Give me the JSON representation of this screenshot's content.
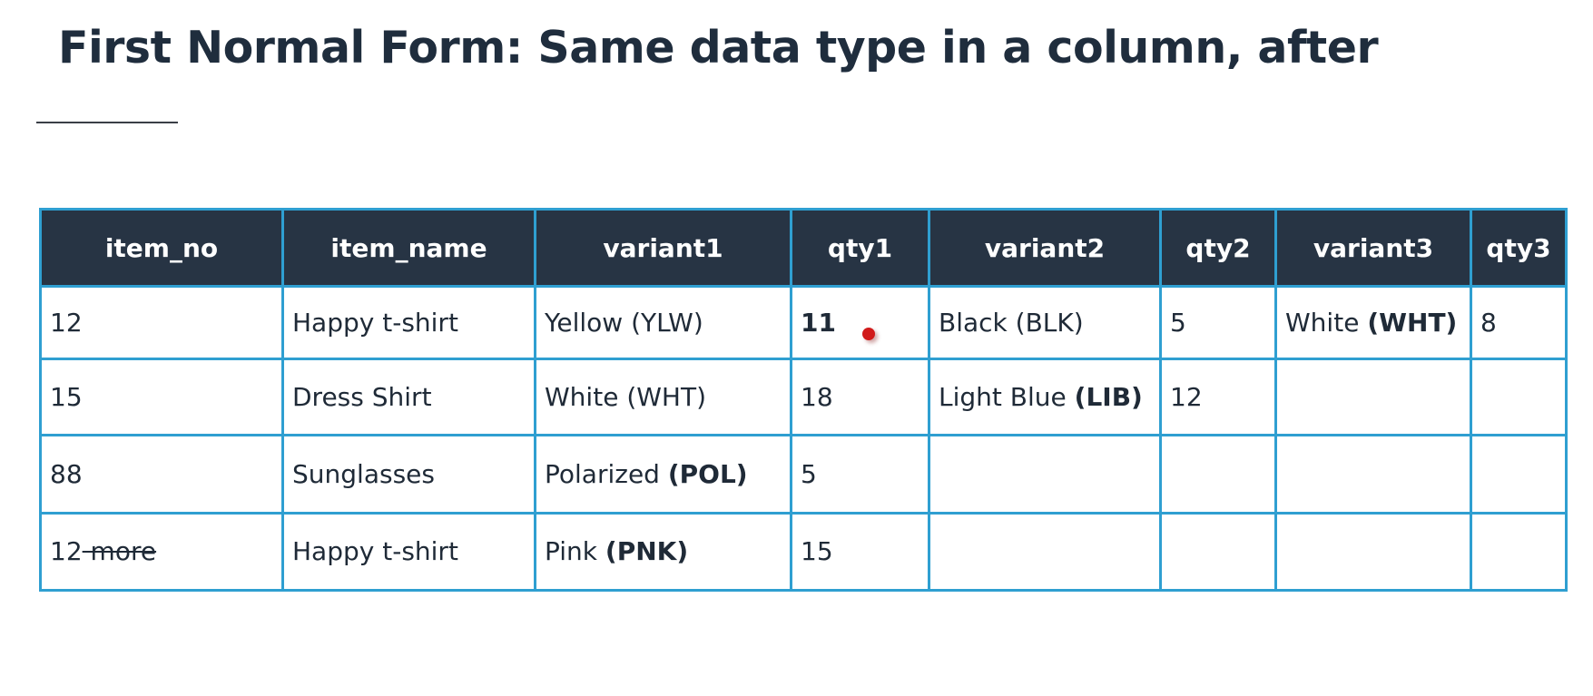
{
  "slide": {
    "title": "First Normal Form: Same data type in a column, after"
  },
  "table": {
    "headers": [
      "item_no",
      "item_name",
      "variant1",
      "qty1",
      "variant2",
      "qty2",
      "variant3",
      "qty3"
    ],
    "rows": [
      {
        "item_no": "12",
        "item_name": "Happy t-shirt",
        "variant1": {
          "text": "Yellow (YLW)"
        },
        "qty1": "11",
        "variant2": {
          "text": "Black (BLK)"
        },
        "qty2": "5",
        "variant3": {
          "text": "White ",
          "code": "(WHT)"
        },
        "qty3": "8"
      },
      {
        "item_no": "15",
        "item_name": "Dress Shirt",
        "variant1": {
          "text": "White (WHT)"
        },
        "qty1": "18",
        "variant2": {
          "text": "Light Blue ",
          "code": "(LIB)"
        },
        "qty2": "12",
        "variant3": {
          "text": ""
        },
        "qty3": ""
      },
      {
        "item_no": "88",
        "item_name": "Sunglasses",
        "variant1": {
          "text": "Polarized ",
          "code": "(POL)"
        },
        "qty1": "5",
        "variant2": {
          "text": ""
        },
        "qty2": "",
        "variant3": {
          "text": ""
        },
        "qty3": ""
      },
      {
        "item_no": "12",
        "item_no_struck": " more",
        "item_name": "Happy t-shirt",
        "variant1": {
          "text": "Pink ",
          "code": "(PNK)"
        },
        "qty1": "15",
        "variant2": {
          "text": ""
        },
        "qty2": "",
        "variant3": {
          "text": ""
        },
        "qty3": ""
      }
    ]
  },
  "colors": {
    "header_bg": "#273444",
    "border": "#2f9fd1",
    "pointer": "#d11a1a"
  }
}
